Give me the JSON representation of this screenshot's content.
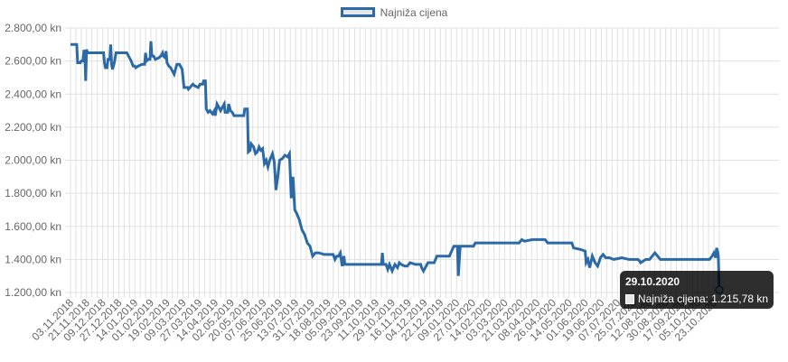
{
  "chart_data": {
    "type": "line",
    "legend": {
      "label": "Najniža cijena",
      "position": "top"
    },
    "colors": {
      "line": "#2b6aa6",
      "fill": "#e6e6e6",
      "grid": "#e1e1e1",
      "tick": "#666666"
    },
    "y_ticks": [
      "2.800,00 kn",
      "2.600,00 kn",
      "2.400,00 kn",
      "2.200,00 kn",
      "2.000,00 kn",
      "1.800,00 kn",
      "1.600,00 kn",
      "1.400,00 kn",
      "1.200,00 kn"
    ],
    "ylim": [
      1200,
      2800
    ],
    "x_ticks": [
      "03.11.2018",
      "21.11.2018",
      "09.12.2018",
      "27.12.2018",
      "14.01.2019",
      "01.02.2019",
      "19.02.2019",
      "09.03.2019",
      "27.03.2019",
      "14.04.2019",
      "02.05.2019",
      "20.05.2019",
      "07.06.2019",
      "25.06.2019",
      "13.07.2019",
      "31.07.2019",
      "18.08.2019",
      "05.09.2019",
      "23.09.2019",
      "11.10.2019",
      "29.10.2019",
      "16.11.2019",
      "04.12.2019",
      "22.12.2019",
      "09.01.2020",
      "27.01.2020",
      "14.02.2020",
      "03.03.2020",
      "21.03.2020",
      "08.04.2020",
      "26.04.2020",
      "14.05.2020",
      "01.06.2020",
      "19.06.2020",
      "07.07.2020",
      "25.07.2020",
      "12.08.2020",
      "30.08.2020",
      "17.09.2020",
      "05.10.2020",
      "23.10.2020"
    ],
    "series": [
      {
        "name": "Najniža cijena",
        "points": [
          [
            "2018-11-03",
            2700
          ],
          [
            "2018-11-10",
            2700
          ],
          [
            "2018-11-11",
            2590
          ],
          [
            "2018-11-14",
            2590
          ],
          [
            "2018-11-15",
            2600
          ],
          [
            "2018-11-17",
            2600
          ],
          [
            "2018-11-18",
            2660
          ],
          [
            "2018-11-19",
            2660
          ],
          [
            "2018-11-20",
            2480
          ],
          [
            "2018-11-21",
            2670
          ],
          [
            "2018-11-22",
            2650
          ],
          [
            "2018-12-10",
            2650
          ],
          [
            "2018-12-11",
            2590
          ],
          [
            "2018-12-12",
            2560
          ],
          [
            "2018-12-14",
            2560
          ],
          [
            "2018-12-15",
            2610
          ],
          [
            "2018-12-17",
            2610
          ],
          [
            "2018-12-18",
            2700
          ],
          [
            "2018-12-19",
            2580
          ],
          [
            "2018-12-20",
            2550
          ],
          [
            "2018-12-22",
            2590
          ],
          [
            "2018-12-24",
            2650
          ],
          [
            "2019-01-05",
            2650
          ],
          [
            "2019-01-06",
            2640
          ],
          [
            "2019-01-10",
            2600
          ],
          [
            "2019-01-12",
            2570
          ],
          [
            "2019-01-14",
            2570
          ],
          [
            "2019-01-15",
            2560
          ],
          [
            "2019-01-18",
            2570
          ],
          [
            "2019-01-22",
            2580
          ],
          [
            "2019-01-25",
            2580
          ],
          [
            "2019-01-26",
            2650
          ],
          [
            "2019-01-27",
            2600
          ],
          [
            "2019-01-29",
            2610
          ],
          [
            "2019-01-31",
            2610
          ],
          [
            "2019-02-01",
            2720
          ],
          [
            "2019-02-02",
            2630
          ],
          [
            "2019-02-04",
            2630
          ],
          [
            "2019-02-06",
            2610
          ],
          [
            "2019-02-10",
            2620
          ],
          [
            "2019-02-12",
            2630
          ],
          [
            "2019-02-14",
            2650
          ],
          [
            "2019-02-15",
            2630
          ],
          [
            "2019-02-17",
            2620
          ],
          [
            "2019-02-18",
            2660
          ],
          [
            "2019-02-19",
            2590
          ],
          [
            "2019-02-21",
            2570
          ],
          [
            "2019-02-23",
            2560
          ],
          [
            "2019-02-25",
            2540
          ],
          [
            "2019-02-27",
            2520
          ],
          [
            "2019-03-02",
            2580
          ],
          [
            "2019-03-05",
            2580
          ],
          [
            "2019-03-06",
            2570
          ],
          [
            "2019-03-08",
            2550
          ],
          [
            "2019-03-10",
            2440
          ],
          [
            "2019-03-14",
            2440
          ],
          [
            "2019-03-15",
            2430
          ],
          [
            "2019-03-20",
            2460
          ],
          [
            "2019-03-22",
            2450
          ],
          [
            "2019-03-26",
            2440
          ],
          [
            "2019-03-28",
            2460
          ],
          [
            "2019-03-31",
            2460
          ],
          [
            "2019-04-01",
            2480
          ],
          [
            "2019-04-03",
            2480
          ],
          [
            "2019-04-04",
            2310
          ],
          [
            "2019-04-06",
            2290
          ],
          [
            "2019-04-08",
            2300
          ],
          [
            "2019-04-11",
            2280
          ],
          [
            "2019-04-13",
            2300
          ],
          [
            "2019-04-14",
            2270
          ],
          [
            "2019-04-16",
            2340
          ],
          [
            "2019-04-18",
            2320
          ],
          [
            "2019-04-20",
            2300
          ],
          [
            "2019-04-22",
            2320
          ],
          [
            "2019-04-24",
            2340
          ],
          [
            "2019-04-25",
            2290
          ],
          [
            "2019-04-28",
            2290
          ],
          [
            "2019-04-29",
            2340
          ],
          [
            "2019-05-01",
            2300
          ],
          [
            "2019-05-03",
            2290
          ],
          [
            "2019-05-05",
            2270
          ],
          [
            "2019-05-08",
            2270
          ],
          [
            "2019-05-09",
            2270
          ],
          [
            "2019-05-16",
            2270
          ],
          [
            "2019-05-17",
            2310
          ],
          [
            "2019-05-20",
            2310
          ],
          [
            "2019-05-21",
            2050
          ],
          [
            "2019-05-23",
            2060
          ],
          [
            "2019-05-24",
            2100
          ],
          [
            "2019-05-27",
            2080
          ],
          [
            "2019-05-29",
            2040
          ],
          [
            "2019-05-31",
            2050
          ],
          [
            "2019-06-02",
            2080
          ],
          [
            "2019-06-04",
            2060
          ],
          [
            "2019-06-06",
            2070
          ],
          [
            "2019-06-08",
            1980
          ],
          [
            "2019-06-10",
            2000
          ],
          [
            "2019-06-12",
            1960
          ],
          [
            "2019-06-14",
            2000
          ],
          [
            "2019-06-17",
            2040
          ],
          [
            "2019-06-19",
            1990
          ],
          [
            "2019-06-21",
            1820
          ],
          [
            "2019-06-23",
            1900
          ],
          [
            "2019-06-25",
            2000
          ],
          [
            "2019-06-28",
            2010
          ],
          [
            "2019-07-01",
            2030
          ],
          [
            "2019-07-04",
            2020
          ],
          [
            "2019-07-06",
            2040
          ],
          [
            "2019-07-08",
            1770
          ],
          [
            "2019-07-10",
            1900
          ],
          [
            "2019-07-12",
            1700
          ],
          [
            "2019-07-14",
            1680
          ],
          [
            "2019-07-17",
            1640
          ],
          [
            "2019-07-20",
            1580
          ],
          [
            "2019-07-23",
            1550
          ],
          [
            "2019-07-26",
            1500
          ],
          [
            "2019-07-29",
            1480
          ],
          [
            "2019-08-01",
            1420
          ],
          [
            "2019-08-04",
            1440
          ],
          [
            "2019-08-08",
            1440
          ],
          [
            "2019-08-14",
            1430
          ],
          [
            "2019-08-20",
            1430
          ],
          [
            "2019-08-24",
            1430
          ],
          [
            "2019-08-26",
            1400
          ],
          [
            "2019-08-28",
            1420
          ],
          [
            "2019-08-30",
            1420
          ],
          [
            "2019-09-01",
            1440
          ],
          [
            "2019-09-03",
            1360
          ],
          [
            "2019-09-05",
            1420
          ],
          [
            "2019-09-06",
            1370
          ],
          [
            "2019-09-09",
            1370
          ],
          [
            "2019-10-17",
            1370
          ],
          [
            "2019-10-18",
            1440
          ],
          [
            "2019-10-19",
            1370
          ],
          [
            "2019-10-22",
            1370
          ],
          [
            "2019-10-24",
            1340
          ],
          [
            "2019-10-26",
            1370
          ],
          [
            "2019-10-29",
            1330
          ],
          [
            "2019-11-01",
            1370
          ],
          [
            "2019-11-04",
            1350
          ],
          [
            "2019-11-06",
            1380
          ],
          [
            "2019-11-08",
            1370
          ],
          [
            "2019-11-12",
            1360
          ],
          [
            "2019-11-15",
            1360
          ],
          [
            "2019-11-18",
            1380
          ],
          [
            "2019-11-24",
            1370
          ],
          [
            "2019-11-30",
            1370
          ],
          [
            "2019-12-01",
            1350
          ],
          [
            "2019-12-03",
            1330
          ],
          [
            "2019-12-06",
            1360
          ],
          [
            "2019-12-08",
            1380
          ],
          [
            "2019-12-15",
            1380
          ],
          [
            "2019-12-18",
            1420
          ],
          [
            "2019-12-24",
            1420
          ],
          [
            "2020-01-01",
            1420
          ],
          [
            "2020-01-06",
            1480
          ],
          [
            "2020-01-10",
            1480
          ],
          [
            "2020-01-11",
            1300
          ],
          [
            "2020-01-13",
            1480
          ],
          [
            "2020-01-28",
            1480
          ],
          [
            "2020-01-30",
            1500
          ],
          [
            "2020-03-19",
            1500
          ],
          [
            "2020-03-22",
            1520
          ],
          [
            "2020-03-25",
            1510
          ],
          [
            "2020-04-03",
            1520
          ],
          [
            "2020-04-17",
            1520
          ],
          [
            "2020-04-20",
            1500
          ],
          [
            "2020-05-17",
            1500
          ],
          [
            "2020-05-19",
            1470
          ],
          [
            "2020-05-27",
            1460
          ],
          [
            "2020-06-01",
            1450
          ],
          [
            "2020-06-02",
            1380
          ],
          [
            "2020-06-04",
            1400
          ],
          [
            "2020-06-06",
            1350
          ],
          [
            "2020-06-09",
            1420
          ],
          [
            "2020-06-12",
            1380
          ],
          [
            "2020-06-15",
            1360
          ],
          [
            "2020-06-18",
            1410
          ],
          [
            "2020-06-21",
            1430
          ],
          [
            "2020-06-24",
            1410
          ],
          [
            "2020-06-28",
            1410
          ],
          [
            "2020-07-03",
            1400
          ],
          [
            "2020-07-12",
            1410
          ],
          [
            "2020-07-20",
            1400
          ],
          [
            "2020-07-30",
            1400
          ],
          [
            "2020-08-01",
            1390
          ],
          [
            "2020-08-02",
            1380
          ],
          [
            "2020-08-08",
            1400
          ],
          [
            "2020-08-12",
            1400
          ],
          [
            "2020-08-18",
            1440
          ],
          [
            "2020-08-21",
            1420
          ],
          [
            "2020-08-24",
            1400
          ],
          [
            "2020-08-28",
            1400
          ],
          [
            "2020-09-05",
            1400
          ],
          [
            "2020-09-10",
            1400
          ],
          [
            "2020-09-20",
            1400
          ],
          [
            "2020-09-30",
            1400
          ],
          [
            "2020-10-03",
            1400
          ],
          [
            "2020-10-10",
            1400
          ],
          [
            "2020-10-18",
            1400
          ],
          [
            "2020-10-21",
            1420
          ],
          [
            "2020-10-23",
            1440
          ],
          [
            "2020-10-25",
            1410
          ],
          [
            "2020-10-26",
            1470
          ],
          [
            "2020-10-27",
            1450
          ],
          [
            "2020-10-28",
            1420
          ],
          [
            "2020-10-29",
            1215.78
          ]
        ]
      }
    ],
    "tooltip": {
      "date": "29.10.2020",
      "label": "Najniža cijena: 1.215,78 kn"
    }
  }
}
